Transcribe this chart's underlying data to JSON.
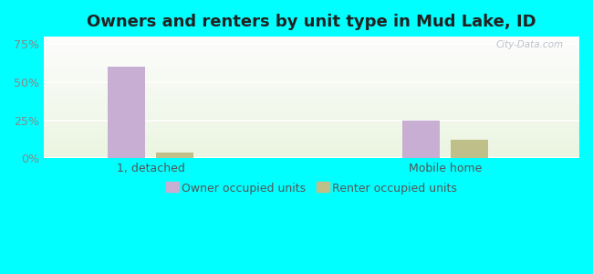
{
  "title": "Owners and renters by unit type in Mud Lake, ID",
  "categories": [
    "1, detached",
    "Mobile home"
  ],
  "owner_values": [
    60,
    25
  ],
  "renter_values": [
    4,
    12
  ],
  "owner_color": "#c9aed4",
  "renter_color": "#bfbf8a",
  "yticks": [
    0,
    25,
    50,
    75
  ],
  "ytick_labels": [
    "0%",
    "25%",
    "50%",
    "75%"
  ],
  "ylim": [
    0,
    80
  ],
  "outer_bg": "#00ffff",
  "bar_width": 0.28,
  "watermark": "City-Data.com",
  "legend_owner": "Owner occupied units",
  "legend_renter": "Renter occupied units",
  "title_fontsize": 13,
  "axis_fontsize": 9,
  "legend_fontsize": 9,
  "grid_color": "#ffffff",
  "tick_color": "#888888",
  "label_color": "#555555"
}
